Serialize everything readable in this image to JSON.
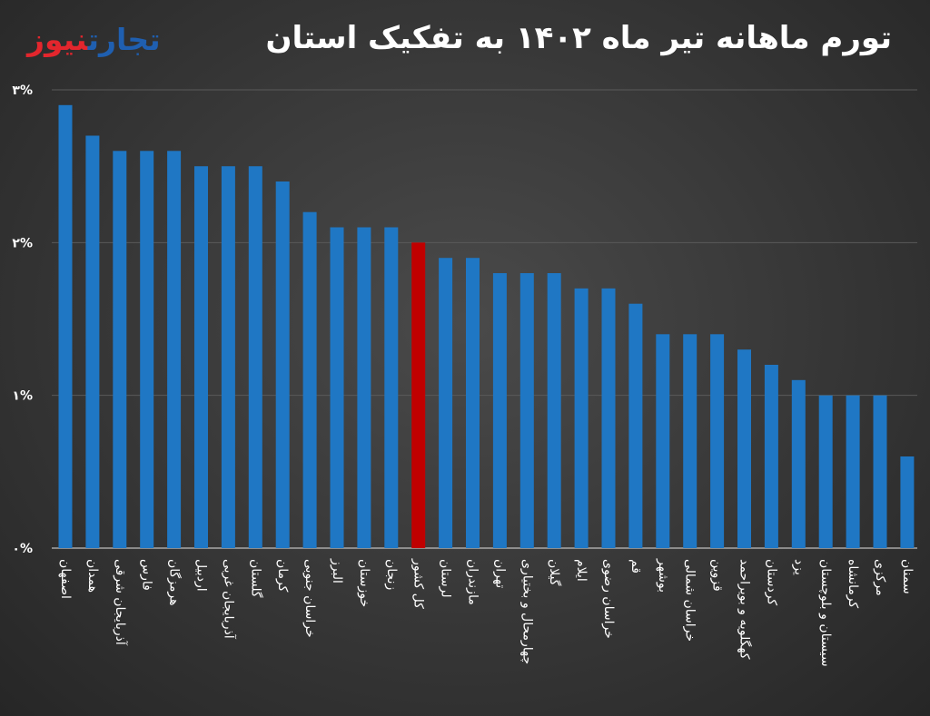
{
  "header": {
    "title": "تورم ماهانه تیر ماه ۱۴۰۲ به تفکیک استان",
    "logo_part1": "تجارت",
    "logo_part2": "نیوز"
  },
  "colors": {
    "bar": "#1f77c4",
    "highlight": "#c00000",
    "grid": "#5a5a5a",
    "axis": "#bfbfbf"
  },
  "chart_data": {
    "type": "bar",
    "title": "تورم ماهانه تیر ماه ۱۴۰۲ به تفکیک استان",
    "xlabel": "",
    "ylabel": "",
    "ylim": [
      0,
      3
    ],
    "yticks": [
      0,
      1,
      2,
      3
    ],
    "ytick_labels": [
      "۰%",
      "۱%",
      "۲%",
      "۳%"
    ],
    "grid": true,
    "highlight_category": "کل کشور",
    "categories": [
      "اصفهان",
      "همدان",
      "آذربایجان شرقی",
      "فارس",
      "هرمزگان",
      "اردبیل",
      "آذربایجان غربی",
      "گلستان",
      "کرمان",
      "خراسان جنوبی",
      "البرز",
      "خوزستان",
      "زنجان",
      "کل کشور",
      "لرستان",
      "مازندران",
      "تهران",
      "چهارمحال و بختیاری",
      "گیلان",
      "ایلام",
      "خراسان رضوی",
      "قم",
      "بوشهر",
      "خراسان شمالی",
      "قزوین",
      "کهگلویه و بویراحمد",
      "کردستان",
      "یزد",
      "سیستان و بلوچستان",
      "کرمانشاه",
      "مرکزی",
      "سمنان"
    ],
    "values": [
      2.9,
      2.7,
      2.6,
      2.6,
      2.6,
      2.5,
      2.5,
      2.5,
      2.4,
      2.2,
      2.1,
      2.1,
      2.1,
      2.0,
      1.9,
      1.9,
      1.8,
      1.8,
      1.8,
      1.7,
      1.7,
      1.6,
      1.4,
      1.4,
      1.4,
      1.3,
      1.2,
      1.1,
      1.0,
      1.0,
      1.0,
      0.6
    ]
  }
}
